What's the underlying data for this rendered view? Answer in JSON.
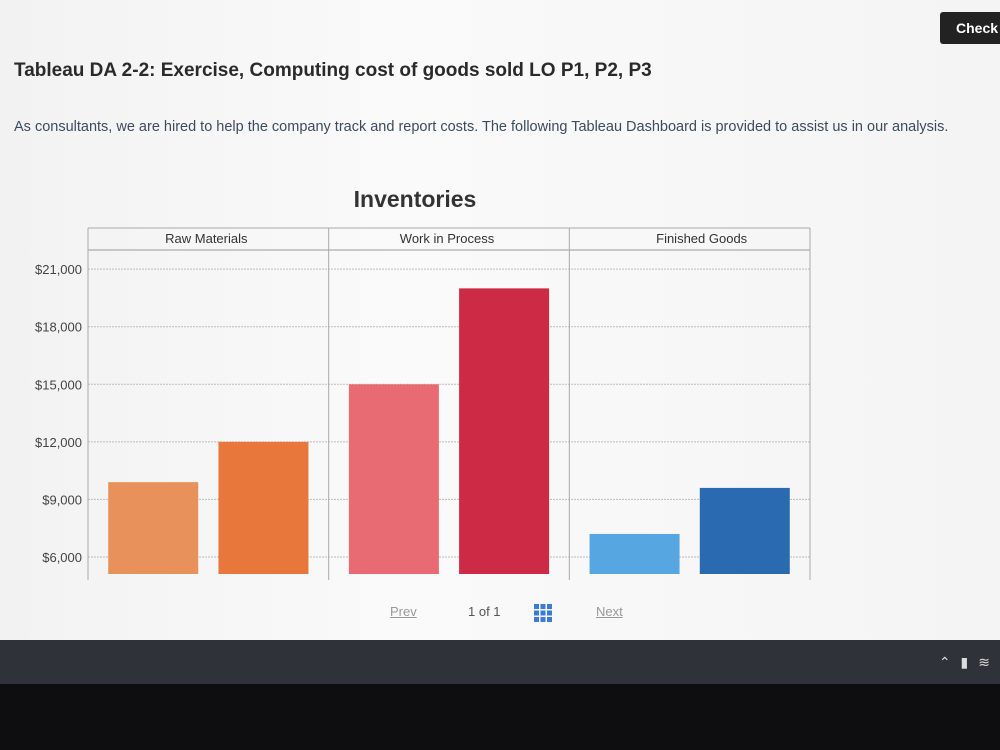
{
  "header": {
    "check_label": "Check"
  },
  "title": "Tableau DA 2-2: Exercise, Computing cost of goods sold LO P1, P2, P3",
  "description": "As consultants, we are hired to help the company track and report costs. The following Tableau Dashboard is provided to assist us in our analysis.",
  "chart_data": {
    "type": "bar",
    "title": "Inventories",
    "panels": [
      {
        "name": "Raw Materials",
        "values": [
          9900,
          12000
        ],
        "colors": [
          "#e8915a",
          "#e8773c"
        ]
      },
      {
        "name": "Work in Process",
        "values": [
          15000,
          20000
        ],
        "colors": [
          "#e86a72",
          "#cc2a45"
        ]
      },
      {
        "name": "Finished Goods",
        "values": [
          7200,
          9600
        ],
        "colors": [
          "#56a6e2",
          "#2a6ab0"
        ]
      }
    ],
    "y_ticks": [
      "$21,000",
      "$18,000",
      "$15,000",
      "$12,000",
      "$9,000",
      "$6,000"
    ],
    "y_tick_values": [
      21000,
      18000,
      15000,
      12000,
      9000,
      6000
    ],
    "ylim": [
      4800,
      22000
    ],
    "grid": true
  },
  "pager": {
    "prev": "Prev",
    "page_indicator": "1 of 1",
    "next": "Next"
  }
}
